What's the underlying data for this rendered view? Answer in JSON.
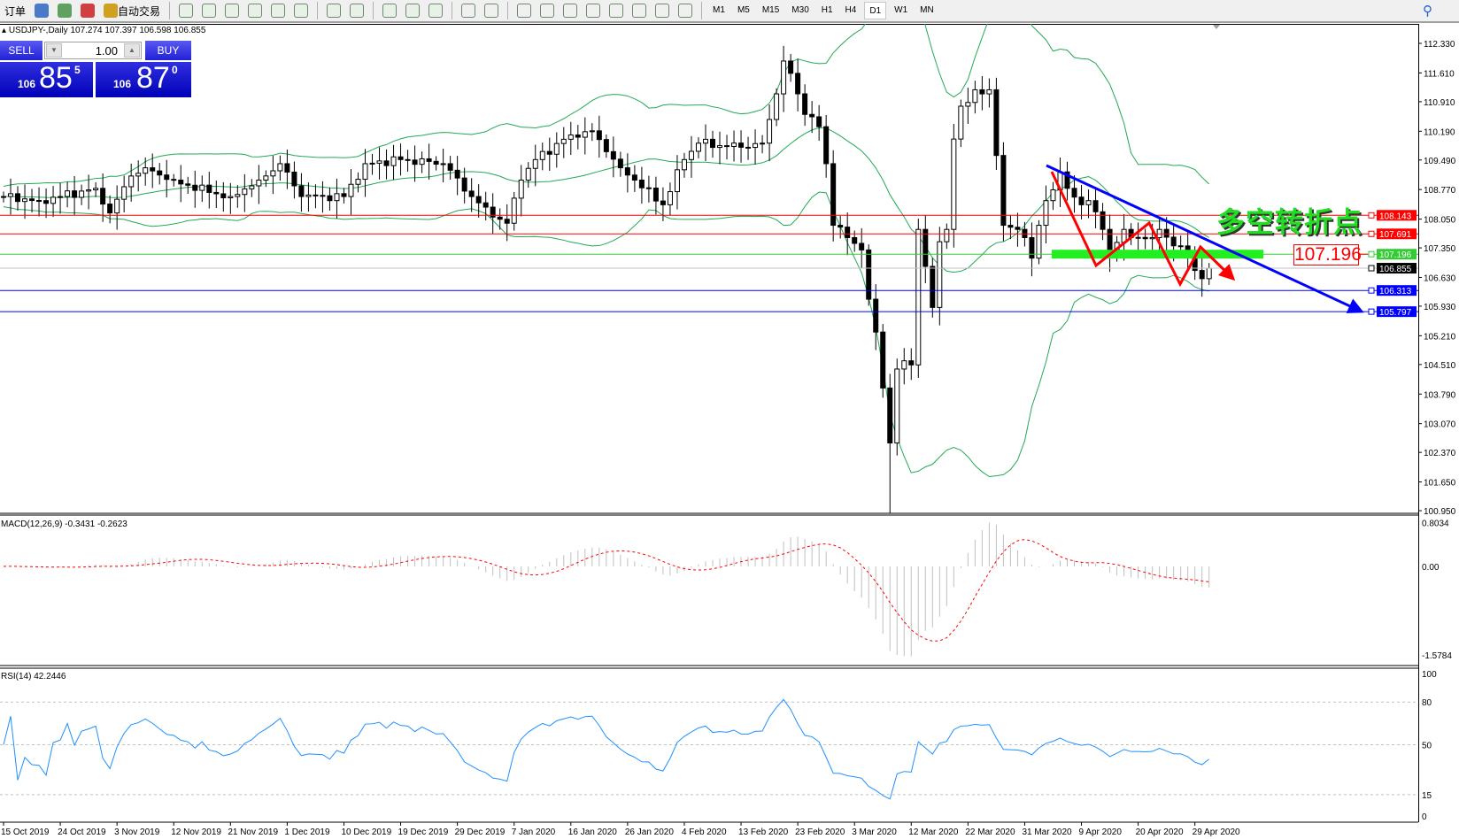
{
  "toolbar": {
    "items": [
      {
        "label": "订单",
        "icon": "new-order-icon"
      },
      {
        "label": "",
        "icon": "market-watch-icon"
      },
      {
        "label": "",
        "icon": "navigator-icon"
      },
      {
        "label": "",
        "icon": "signals-icon"
      },
      {
        "label": "自动交易",
        "icon": "autotrading-icon"
      }
    ],
    "tools": [
      "bar-chart-icon",
      "candlestick-icon",
      "line-chart-icon",
      "zoom-in-icon",
      "zoom-out-icon",
      "tile-windows-icon",
      "autoscroll-icon",
      "chart-shift-icon",
      "indicators-icon",
      "periods-icon",
      "templates-icon",
      "cursor-icon",
      "crosshair-icon",
      "vertical-line-icon",
      "horizontal-line-icon",
      "trendline-icon",
      "equidistant-channel-icon",
      "fibonacci-icon",
      "text-icon",
      "text-label-icon",
      "arrows-icon"
    ],
    "timeframes": [
      "M1",
      "M5",
      "M15",
      "M30",
      "H1",
      "H4",
      "D1",
      "W1",
      "MN"
    ],
    "active_timeframe": "D1"
  },
  "header": {
    "symbol_info": "USDJPY-,Daily  107.274 107.397 106.598 106.855"
  },
  "trade_panel": {
    "sell_label": "SELL",
    "buy_label": "BUY",
    "lot": "1.00",
    "sell_price": {
      "big": "106",
      "main": "85",
      "pip": "5"
    },
    "buy_price": {
      "big": "106",
      "main": "87",
      "pip": "0"
    }
  },
  "annotation": {
    "text": "多空转折点",
    "price_box": "107.196"
  },
  "chart_data": {
    "type": "candlestick",
    "symbol": "USDJPY-",
    "timeframe": "Daily",
    "ylim": [
      100.95,
      112.33
    ],
    "price_ticks": [
      "112.330",
      "111.610",
      "110.910",
      "110.190",
      "109.490",
      "108.770",
      "108.050",
      "107.350",
      "106.630",
      "105.930",
      "105.210",
      "104.510",
      "103.790",
      "103.070",
      "102.370",
      "101.650",
      "100.950"
    ],
    "date_labels": [
      "15 Oct 2019",
      "24 Oct 2019",
      "3 Nov 2019",
      "12 Nov 2019",
      "21 Nov 2019",
      "1 Dec 2019",
      "10 Dec 2019",
      "19 Dec 2019",
      "29 Dec 2019",
      "7 Jan 2020",
      "16 Jan 2020",
      "26 Jan 2020",
      "4 Feb 2020",
      "13 Feb 2020",
      "23 Feb 2020",
      "3 Mar 2020",
      "12 Mar 2020",
      "22 Mar 2020",
      "31 Mar 2020",
      "9 Apr 2020",
      "20 Apr 2020",
      "29 Apr 2020"
    ],
    "start_date": "2019-10-15",
    "end_date": "2020-04-30",
    "closes": [
      [
        "2019-10-15",
        108.6
      ],
      [
        "2019-10-21",
        108.5
      ],
      [
        "2019-10-24",
        108.6
      ],
      [
        "2019-10-30",
        108.8
      ],
      [
        "2019-11-01",
        108.2
      ],
      [
        "2019-11-05",
        109.1
      ],
      [
        "2019-11-07",
        109.3
      ],
      [
        "2019-11-12",
        109.0
      ],
      [
        "2019-11-18",
        108.7
      ],
      [
        "2019-11-21",
        108.6
      ],
      [
        "2019-11-26",
        109.0
      ],
      [
        "2019-11-29",
        109.4
      ],
      [
        "2019-12-03",
        108.6
      ],
      [
        "2019-12-10",
        108.6
      ],
      [
        "2019-12-13",
        109.4
      ],
      [
        "2019-12-19",
        109.5
      ],
      [
        "2019-12-26",
        109.4
      ],
      [
        "2019-12-31",
        108.6
      ],
      [
        "2020-01-03",
        108.1
      ],
      [
        "2020-01-06",
        107.95
      ],
      [
        "2020-01-08",
        109.0
      ],
      [
        "2020-01-10",
        109.5
      ],
      [
        "2020-01-16",
        110.1
      ],
      [
        "2020-01-20",
        110.2
      ],
      [
        "2020-01-24",
        109.3
      ],
      [
        "2020-01-27",
        109.0
      ],
      [
        "2020-01-31",
        108.4
      ],
      [
        "2020-02-04",
        109.5
      ],
      [
        "2020-02-06",
        109.9
      ],
      [
        "2020-02-13",
        109.8
      ],
      [
        "2020-02-17",
        109.9
      ],
      [
        "2020-02-19",
        111.1
      ],
      [
        "2020-02-20",
        111.9
      ],
      [
        "2020-02-21",
        111.6
      ],
      [
        "2020-02-24",
        110.6
      ],
      [
        "2020-02-26",
        110.3
      ],
      [
        "2020-02-27",
        109.4
      ],
      [
        "2020-02-28",
        107.9
      ],
      [
        "2020-03-02",
        107.6
      ],
      [
        "2020-03-04",
        107.3
      ],
      [
        "2020-03-05",
        106.1
      ],
      [
        "2020-03-06",
        105.3
      ],
      [
        "2020-03-09",
        102.6
      ],
      [
        "2020-03-10",
        104.4
      ],
      [
        "2020-03-11",
        104.6
      ],
      [
        "2020-03-12",
        104.5
      ],
      [
        "2020-03-13",
        107.8
      ],
      [
        "2020-03-16",
        105.9
      ],
      [
        "2020-03-17",
        107.5
      ],
      [
        "2020-03-18",
        107.8
      ],
      [
        "2020-03-19",
        110.0
      ],
      [
        "2020-03-20",
        110.8
      ],
      [
        "2020-03-23",
        111.2
      ],
      [
        "2020-03-24",
        111.1
      ],
      [
        "2020-03-25",
        111.2
      ],
      [
        "2020-03-26",
        109.6
      ],
      [
        "2020-03-27",
        107.9
      ],
      [
        "2020-03-30",
        107.8
      ],
      [
        "2020-03-31",
        107.6
      ],
      [
        "2020-04-01",
        107.1
      ],
      [
        "2020-04-02",
        107.9
      ],
      [
        "2020-04-03",
        108.5
      ],
      [
        "2020-04-06",
        109.2
      ],
      [
        "2020-04-07",
        108.8
      ],
      [
        "2020-04-09",
        108.4
      ],
      [
        "2020-04-10",
        108.5
      ],
      [
        "2020-04-13",
        107.8
      ],
      [
        "2020-04-14",
        107.2
      ],
      [
        "2020-04-16",
        107.8
      ],
      [
        "2020-04-17",
        107.6
      ],
      [
        "2020-04-21",
        107.6
      ],
      [
        "2020-04-22",
        107.8
      ],
      [
        "2020-04-24",
        107.4
      ],
      [
        "2020-04-27",
        107.2
      ],
      [
        "2020-04-28",
        106.8
      ],
      [
        "2020-04-29",
        106.6
      ],
      [
        "2020-04-30",
        106.855
      ]
    ],
    "indicators": {
      "bollinger": "Bollinger Bands",
      "macd": {
        "label": "MACD(12,26,9) -0.3431 -0.2623",
        "ticks": [
          "0.8034",
          "0.00",
          "-1.5784"
        ],
        "ylim": [
          -1.5784,
          0.8034
        ]
      },
      "rsi": {
        "label": "RSI(14) 42.2446",
        "ticks": [
          "100",
          "80",
          "50",
          "15",
          "0"
        ],
        "levels": [
          80,
          50,
          15
        ]
      }
    },
    "hlines": [
      {
        "price": "108.143",
        "color": "#ff0000"
      },
      {
        "price": "107.691",
        "color": "#ff0000"
      },
      {
        "price": "107.196",
        "color": "#33cc33"
      },
      {
        "price": "106.855",
        "color": "#000000",
        "bid": true
      },
      {
        "price": "106.313",
        "color": "#0000ff"
      },
      {
        "price": "105.797",
        "color": "#0000ff"
      }
    ],
    "colors": {
      "bands": "#22aa55",
      "macd_hist": "#c0c0c0",
      "macd_signal": "#ff0000",
      "rsi": "#1e90ff",
      "trendline": "#0000ff",
      "zigzag": "#ff0000",
      "zone": "#22ee22"
    }
  }
}
